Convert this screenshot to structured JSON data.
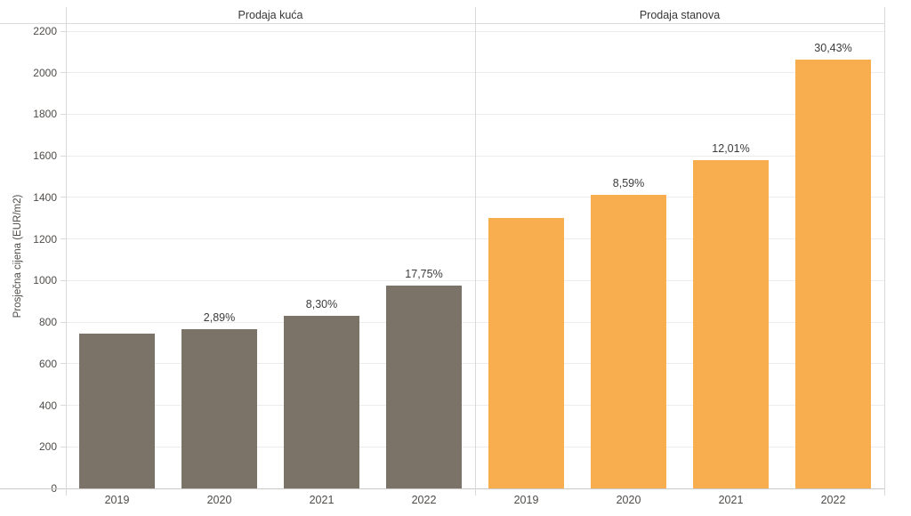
{
  "colors": {
    "background": "#ffffff",
    "houses_bar": "#7b7268",
    "apartments_bar": "#f8ad4f",
    "grid_line": "#ececec",
    "panel_border": "#d9d9d9",
    "title_underline": "#dcdcdc",
    "axis_line": "#c9c9c9",
    "title_text": "#373737",
    "tick_text": "#4f4c49",
    "bar_label_text": "#3c3c3c"
  },
  "chart_data": {
    "type": "bar",
    "title": "",
    "xlabel": "",
    "ylabel": "Prosječna cijena (EUR/m2)",
    "ylim": [
      0,
      2200
    ],
    "ytick_step": 200,
    "yticks": [
      0,
      200,
      400,
      600,
      800,
      1000,
      1200,
      1400,
      1600,
      1800,
      2000,
      2200
    ],
    "grid": true,
    "legend": "none",
    "categories": [
      "2019",
      "2020",
      "2021",
      "2022"
    ],
    "panels": [
      {
        "id": "houses",
        "title": "Prodaja kuća",
        "bar_color": "#7b7268",
        "values": [
          744,
          766,
          829,
          976
        ],
        "bar_labels": [
          "",
          "2,89%",
          "8,30%",
          "17,75%"
        ]
      },
      {
        "id": "apartments",
        "title": "Prodaja stanova",
        "bar_color": "#f8ad4f",
        "values": [
          1300,
          1412,
          1581,
          2062
        ],
        "bar_labels": [
          "",
          "8,59%",
          "12,01%",
          "30,43%"
        ]
      }
    ]
  }
}
